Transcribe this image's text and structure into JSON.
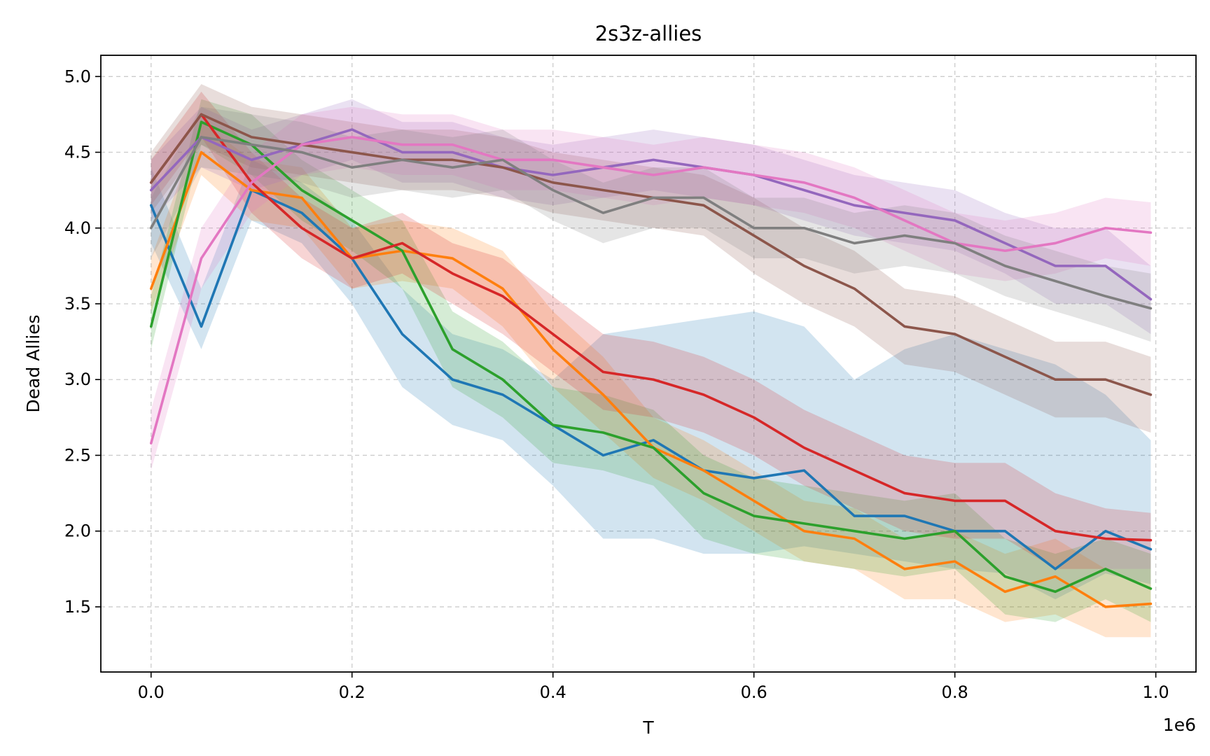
{
  "chart_data": {
    "type": "line",
    "title": "2s3z-allies",
    "xlabel": "T",
    "ylabel": "Dead Allies",
    "x_offset_label": "1e6",
    "xlim": [
      -0.05,
      1.04
    ],
    "ylim": [
      1.07,
      5.14
    ],
    "xticks": [
      0.0,
      0.2,
      0.4,
      0.6,
      0.8,
      1.0
    ],
    "xtick_labels": [
      "0.0",
      "0.2",
      "0.4",
      "0.6",
      "0.8",
      "1.0"
    ],
    "yticks": [
      1.5,
      2.0,
      2.5,
      3.0,
      3.5,
      4.0,
      4.5,
      5.0
    ],
    "ytick_labels": [
      "1.5",
      "2.0",
      "2.5",
      "3.0",
      "3.5",
      "4.0",
      "4.5",
      "5.0"
    ],
    "grid": true,
    "legend": "none",
    "x": [
      0.0,
      0.05,
      0.1,
      0.15,
      0.2,
      0.25,
      0.3,
      0.35,
      0.4,
      0.45,
      0.5,
      0.55,
      0.6,
      0.65,
      0.7,
      0.75,
      0.8,
      0.85,
      0.9,
      0.95,
      0.995
    ],
    "series": [
      {
        "color": "#1f77b4",
        "values": [
          4.15,
          3.35,
          4.25,
          4.1,
          3.8,
          3.3,
          3.0,
          2.9,
          2.7,
          2.5,
          2.6,
          2.4,
          2.35,
          2.4,
          2.1,
          2.1,
          2.0,
          2.0,
          1.75,
          2.0,
          1.88
        ],
        "lower": [
          3.9,
          3.2,
          4.05,
          3.9,
          3.5,
          2.95,
          2.7,
          2.6,
          2.3,
          1.95,
          1.95,
          1.85,
          1.85,
          1.9,
          1.85,
          1.8,
          1.75,
          1.72,
          1.55,
          1.72,
          1.65
        ],
        "upper": [
          4.4,
          3.6,
          4.45,
          4.3,
          4.05,
          3.6,
          3.3,
          3.2,
          3.0,
          3.3,
          3.35,
          3.4,
          3.45,
          3.35,
          3.0,
          3.2,
          3.3,
          3.2,
          3.1,
          2.9,
          2.6
        ]
      },
      {
        "color": "#ff7f0e",
        "values": [
          3.6,
          4.5,
          4.25,
          4.2,
          3.8,
          3.85,
          3.8,
          3.6,
          3.2,
          2.9,
          2.55,
          2.4,
          2.2,
          2.0,
          1.95,
          1.75,
          1.8,
          1.6,
          1.7,
          1.5,
          1.52
        ],
        "lower": [
          3.45,
          4.35,
          4.05,
          4.0,
          3.6,
          3.65,
          3.6,
          3.35,
          2.95,
          2.65,
          2.35,
          2.2,
          2.0,
          1.8,
          1.75,
          1.55,
          1.55,
          1.4,
          1.45,
          1.3,
          1.3
        ],
        "upper": [
          3.8,
          4.7,
          4.45,
          4.4,
          4.0,
          4.05,
          4.0,
          3.85,
          3.45,
          3.15,
          2.75,
          2.6,
          2.4,
          2.2,
          2.15,
          1.95,
          2.0,
          1.85,
          1.95,
          1.75,
          1.75
        ]
      },
      {
        "color": "#2ca02c",
        "values": [
          3.35,
          4.7,
          4.55,
          4.25,
          4.05,
          3.85,
          3.2,
          3.0,
          2.7,
          2.65,
          2.55,
          2.25,
          2.1,
          2.05,
          2.0,
          1.95,
          2.0,
          1.7,
          1.6,
          1.75,
          1.62
        ],
        "lower": [
          3.2,
          4.55,
          4.35,
          4.05,
          3.85,
          3.6,
          2.95,
          2.75,
          2.45,
          2.4,
          2.3,
          1.95,
          1.85,
          1.8,
          1.75,
          1.7,
          1.75,
          1.45,
          1.4,
          1.55,
          1.4
        ],
        "upper": [
          3.55,
          4.85,
          4.75,
          4.45,
          4.25,
          4.05,
          3.45,
          3.25,
          2.95,
          2.9,
          2.8,
          2.5,
          2.35,
          2.3,
          2.25,
          2.2,
          2.25,
          1.95,
          1.85,
          1.95,
          1.85
        ]
      },
      {
        "color": "#d62728",
        "values": [
          4.3,
          4.75,
          4.3,
          4.0,
          3.8,
          3.9,
          3.7,
          3.55,
          3.3,
          3.05,
          3.0,
          2.9,
          2.75,
          2.55,
          2.4,
          2.25,
          2.2,
          2.2,
          2.0,
          1.95,
          1.94
        ],
        "lower": [
          4.15,
          4.6,
          4.1,
          3.8,
          3.6,
          3.7,
          3.5,
          3.3,
          3.05,
          2.8,
          2.75,
          2.65,
          2.5,
          2.3,
          2.15,
          2.0,
          1.95,
          1.95,
          1.75,
          1.75,
          1.75
        ],
        "upper": [
          4.45,
          4.9,
          4.5,
          4.2,
          4.0,
          4.1,
          3.9,
          3.8,
          3.55,
          3.3,
          3.25,
          3.15,
          3.0,
          2.8,
          2.65,
          2.5,
          2.45,
          2.45,
          2.25,
          2.15,
          2.12
        ]
      },
      {
        "color": "#9467bd",
        "values": [
          4.25,
          4.6,
          4.45,
          4.55,
          4.65,
          4.5,
          4.5,
          4.4,
          4.35,
          4.4,
          4.45,
          4.4,
          4.35,
          4.25,
          4.15,
          4.1,
          4.05,
          3.9,
          3.75,
          3.75,
          3.53
        ],
        "lower": [
          4.05,
          4.4,
          4.25,
          4.35,
          4.45,
          4.3,
          4.3,
          4.2,
          4.15,
          4.2,
          4.25,
          4.2,
          4.15,
          4.05,
          3.95,
          3.9,
          3.85,
          3.7,
          3.5,
          3.5,
          3.3
        ],
        "upper": [
          4.45,
          4.8,
          4.65,
          4.75,
          4.85,
          4.7,
          4.7,
          4.6,
          4.55,
          4.6,
          4.65,
          4.6,
          4.55,
          4.45,
          4.35,
          4.3,
          4.25,
          4.1,
          4.0,
          4.0,
          3.75
        ]
      },
      {
        "color": "#8c564b",
        "values": [
          4.3,
          4.75,
          4.6,
          4.55,
          4.5,
          4.45,
          4.45,
          4.4,
          4.3,
          4.25,
          4.2,
          4.15,
          3.95,
          3.75,
          3.6,
          3.35,
          3.3,
          3.15,
          3.0,
          3.0,
          2.9
        ],
        "lower": [
          4.1,
          4.55,
          4.4,
          4.35,
          4.3,
          4.25,
          4.25,
          4.2,
          4.1,
          4.05,
          4.0,
          3.95,
          3.7,
          3.5,
          3.35,
          3.1,
          3.05,
          2.9,
          2.75,
          2.75,
          2.65
        ],
        "upper": [
          4.5,
          4.95,
          4.8,
          4.75,
          4.7,
          4.65,
          4.65,
          4.6,
          4.5,
          4.45,
          4.4,
          4.35,
          4.2,
          4.0,
          3.85,
          3.6,
          3.55,
          3.4,
          3.25,
          3.25,
          3.15
        ]
      },
      {
        "color": "#e377c2",
        "values": [
          2.58,
          3.8,
          4.3,
          4.55,
          4.6,
          4.55,
          4.55,
          4.45,
          4.45,
          4.4,
          4.35,
          4.4,
          4.35,
          4.3,
          4.2,
          4.05,
          3.9,
          3.85,
          3.9,
          4.0,
          3.97
        ],
        "lower": [
          2.4,
          3.6,
          4.1,
          4.35,
          4.4,
          4.35,
          4.35,
          4.25,
          4.25,
          4.2,
          4.15,
          4.2,
          4.15,
          4.1,
          4.0,
          3.85,
          3.7,
          3.65,
          3.7,
          3.8,
          3.75
        ],
        "upper": [
          2.8,
          4.0,
          4.5,
          4.75,
          4.8,
          4.75,
          4.75,
          4.65,
          4.65,
          4.6,
          4.55,
          4.6,
          4.55,
          4.5,
          4.4,
          4.25,
          4.1,
          4.05,
          4.1,
          4.2,
          4.17
        ]
      },
      {
        "color": "#7f7f7f",
        "values": [
          4.0,
          4.6,
          4.55,
          4.5,
          4.4,
          4.45,
          4.4,
          4.45,
          4.25,
          4.1,
          4.2,
          4.2,
          4.0,
          4.0,
          3.9,
          3.95,
          3.9,
          3.75,
          3.65,
          3.55,
          3.47
        ],
        "lower": [
          3.8,
          4.4,
          4.35,
          4.3,
          4.2,
          4.25,
          4.2,
          4.25,
          4.05,
          3.9,
          4.0,
          4.0,
          3.8,
          3.8,
          3.7,
          3.75,
          3.7,
          3.55,
          3.45,
          3.35,
          3.25
        ],
        "upper": [
          4.2,
          4.8,
          4.75,
          4.7,
          4.6,
          4.65,
          4.6,
          4.65,
          4.45,
          4.3,
          4.4,
          4.4,
          4.2,
          4.2,
          4.1,
          4.15,
          4.1,
          3.95,
          3.85,
          3.75,
          3.7
        ]
      }
    ]
  }
}
